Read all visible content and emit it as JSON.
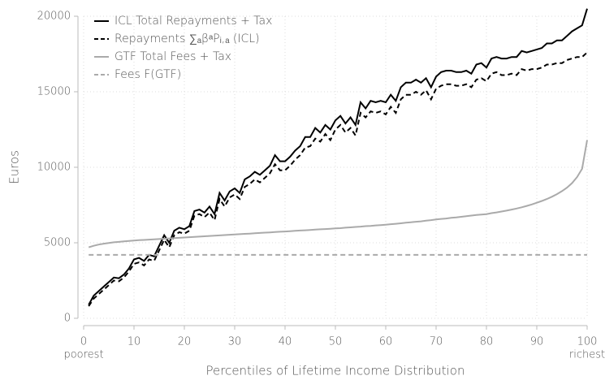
{
  "chart_data": {
    "type": "line",
    "x_label": "Percentiles of Lifetime Income Distribution",
    "y_label": "Euros",
    "annotations": [
      "poorest",
      "richest"
    ],
    "x": [
      1,
      2,
      3,
      4,
      5,
      6,
      7,
      8,
      9,
      10,
      11,
      12,
      13,
      14,
      15,
      16,
      17,
      18,
      19,
      20,
      21,
      22,
      23,
      24,
      25,
      26,
      27,
      28,
      29,
      30,
      31,
      32,
      33,
      34,
      35,
      36,
      37,
      38,
      39,
      40,
      41,
      42,
      43,
      44,
      45,
      46,
      47,
      48,
      49,
      50,
      51,
      52,
      53,
      54,
      55,
      56,
      57,
      58,
      59,
      60,
      61,
      62,
      63,
      64,
      65,
      66,
      67,
      68,
      69,
      70,
      71,
      72,
      73,
      74,
      75,
      76,
      77,
      78,
      79,
      80,
      81,
      82,
      83,
      84,
      85,
      86,
      87,
      88,
      89,
      90,
      91,
      92,
      93,
      94,
      95,
      96,
      97,
      98,
      99,
      100
    ],
    "series": [
      {
        "name": "ICL Total Repayments + Tax",
        "color": "#000000",
        "dash": false,
        "values": [
          900,
          1500,
          1800,
          2100,
          2400,
          2700,
          2650,
          2900,
          3300,
          3900,
          4000,
          3800,
          4200,
          4100,
          4800,
          5500,
          5000,
          5800,
          6000,
          5900,
          6100,
          7100,
          7200,
          7000,
          7400,
          6900,
          8300,
          7800,
          8400,
          8600,
          8300,
          9200,
          9400,
          9700,
          9500,
          9800,
          10100,
          10800,
          10400,
          10400,
          10700,
          11100,
          11400,
          12000,
          12000,
          12600,
          12300,
          12800,
          12500,
          13100,
          13400,
          12900,
          13300,
          12800,
          14300,
          13900,
          14400,
          14300,
          14400,
          14300,
          14800,
          14400,
          15300,
          15600,
          15600,
          15800,
          15600,
          15900,
          15300,
          16000,
          16300,
          16400,
          16400,
          16300,
          16300,
          16400,
          16200,
          16800,
          16900,
          16600,
          17200,
          17300,
          17200,
          17200,
          17300,
          17300,
          17700,
          17600,
          17700,
          17800,
          17900,
          18200,
          18200,
          18400,
          18400,
          18700,
          19000,
          19200,
          19400,
          20500
        ]
      },
      {
        "name": "Repayments ∑ₐβᵃPᵢ,ₐ (ICL)",
        "color": "#000000",
        "dash": true,
        "values": [
          800,
          1300,
          1600,
          1900,
          2200,
          2500,
          2450,
          2700,
          3100,
          3600,
          3700,
          3500,
          3900,
          3800,
          4500,
          5200,
          4700,
          5500,
          5700,
          5600,
          5800,
          6800,
          6900,
          6700,
          7000,
          6500,
          7900,
          7400,
          8000,
          8200,
          7900,
          8700,
          8900,
          9200,
          9000,
          9300,
          9600,
          10200,
          9800,
          9800,
          10100,
          10500,
          10800,
          11300,
          11400,
          11900,
          11700,
          12200,
          11800,
          12500,
          12800,
          12300,
          12600,
          12100,
          13600,
          13300,
          13700,
          13600,
          13700,
          13500,
          14000,
          13600,
          14500,
          14800,
          14800,
          15000,
          14800,
          15100,
          14500,
          15200,
          15400,
          15500,
          15500,
          15400,
          15400,
          15500,
          15300,
          15800,
          15900,
          15700,
          16200,
          16300,
          16100,
          16100,
          16200,
          16100,
          16500,
          16400,
          16500,
          16500,
          16600,
          16800,
          16800,
          16900,
          16900,
          17100,
          17200,
          17300,
          17300,
          17600
        ]
      },
      {
        "name": "GTF Total Fees + Tax",
        "color": "#aaaaaa",
        "dash": false,
        "values": [
          4700,
          4800,
          4880,
          4940,
          4990,
          5030,
          5060,
          5090,
          5120,
          5150,
          5170,
          5190,
          5210,
          5230,
          5250,
          5270,
          5290,
          5310,
          5330,
          5350,
          5370,
          5390,
          5410,
          5430,
          5450,
          5470,
          5490,
          5510,
          5530,
          5550,
          5570,
          5590,
          5610,
          5630,
          5650,
          5670,
          5690,
          5710,
          5730,
          5750,
          5770,
          5790,
          5810,
          5830,
          5850,
          5870,
          5890,
          5910,
          5930,
          5950,
          5970,
          6000,
          6020,
          6050,
          6070,
          6100,
          6120,
          6150,
          6170,
          6200,
          6230,
          6260,
          6290,
          6330,
          6360,
          6390,
          6420,
          6460,
          6500,
          6550,
          6580,
          6610,
          6650,
          6680,
          6720,
          6760,
          6800,
          6840,
          6870,
          6900,
          6960,
          7010,
          7070,
          7130,
          7200,
          7270,
          7350,
          7440,
          7540,
          7650,
          7770,
          7900,
          8050,
          8220,
          8420,
          8650,
          8950,
          9350,
          9900,
          11800
        ]
      },
      {
        "name": "Fees F(GTF)",
        "color": "#aaaaaa",
        "dash": true,
        "values": [
          4200,
          4200,
          4200,
          4200,
          4200,
          4200,
          4200,
          4200,
          4200,
          4200,
          4200,
          4200,
          4200,
          4200,
          4200,
          4200,
          4200,
          4200,
          4200,
          4200,
          4200,
          4200,
          4200,
          4200,
          4200,
          4200,
          4200,
          4200,
          4200,
          4200,
          4200,
          4200,
          4200,
          4200,
          4200,
          4200,
          4200,
          4200,
          4200,
          4200,
          4200,
          4200,
          4200,
          4200,
          4200,
          4200,
          4200,
          4200,
          4200,
          4200,
          4200,
          4200,
          4200,
          4200,
          4200,
          4200,
          4200,
          4200,
          4200,
          4200,
          4200,
          4200,
          4200,
          4200,
          4200,
          4200,
          4200,
          4200,
          4200,
          4200,
          4200,
          4200,
          4200,
          4200,
          4200,
          4200,
          4200,
          4200,
          4200,
          4200,
          4200,
          4200,
          4200,
          4200,
          4200,
          4200,
          4200,
          4200,
          4200,
          4200,
          4200,
          4200,
          4200,
          4200,
          4200,
          4200,
          4200,
          4200,
          4200,
          4200
        ]
      }
    ],
    "xlim": [
      0,
      100
    ],
    "xticks": [
      0,
      10,
      20,
      30,
      40,
      50,
      60,
      70,
      80,
      90,
      100
    ],
    "ylim": [
      0,
      20000
    ],
    "yticks": [
      0,
      5000,
      10000,
      15000,
      20000
    ],
    "grid": true,
    "legend": "top-left"
  }
}
